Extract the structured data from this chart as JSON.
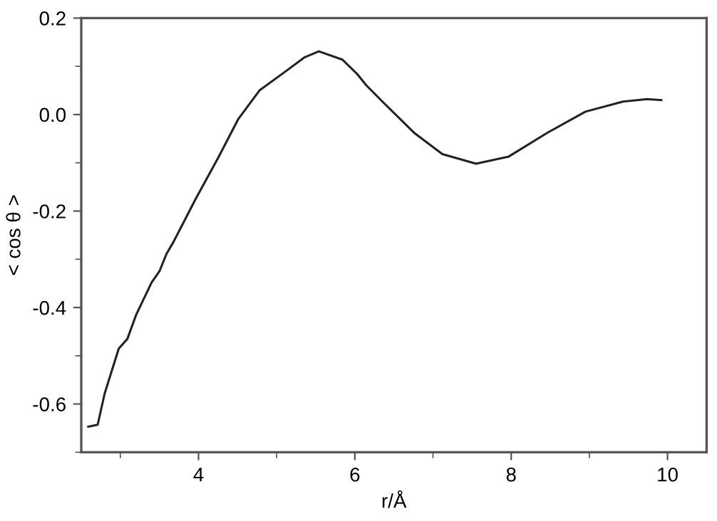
{
  "chart_data": {
    "type": "line",
    "xlabel": "r/Å",
    "ylabel": "< cos θ >",
    "series": [
      {
        "color": "#222222",
        "x": [
          2.59,
          2.71,
          2.8,
          2.98,
          3.09,
          3.2,
          3.4,
          3.5,
          3.59,
          3.68,
          3.96,
          4.26,
          4.51,
          4.78,
          5.11,
          5.36,
          5.54,
          5.84,
          6.03,
          6.15,
          6.39,
          6.76,
          7.12,
          7.55,
          7.97,
          8.46,
          8.95,
          9.43,
          9.74,
          9.92
        ],
        "values": [
          -0.647,
          -0.643,
          -0.578,
          -0.485,
          -0.465,
          -0.416,
          -0.348,
          -0.325,
          -0.289,
          -0.264,
          -0.176,
          -0.087,
          -0.009,
          0.05,
          0.089,
          0.119,
          0.131,
          0.114,
          0.084,
          0.06,
          0.021,
          -0.038,
          -0.082,
          -0.102,
          -0.087,
          -0.038,
          0.006,
          0.027,
          0.032,
          0.03
        ]
      }
    ],
    "xlim": [
      2.5,
      10.5
    ],
    "ylim": [
      -0.7,
      0.2
    ],
    "xticks": [
      4,
      6,
      8,
      10
    ],
    "yticks": [
      {
        "value": 0.2,
        "label": "0.2"
      },
      {
        "value": 0.0,
        "label": "0.0"
      },
      {
        "value": -0.2,
        "label": "-0.2"
      },
      {
        "value": -0.4,
        "label": "-0.4"
      },
      {
        "value": -0.6,
        "label": "-0.6"
      }
    ],
    "grid": false,
    "legend": false,
    "marker": "none",
    "line_style": "solid"
  }
}
